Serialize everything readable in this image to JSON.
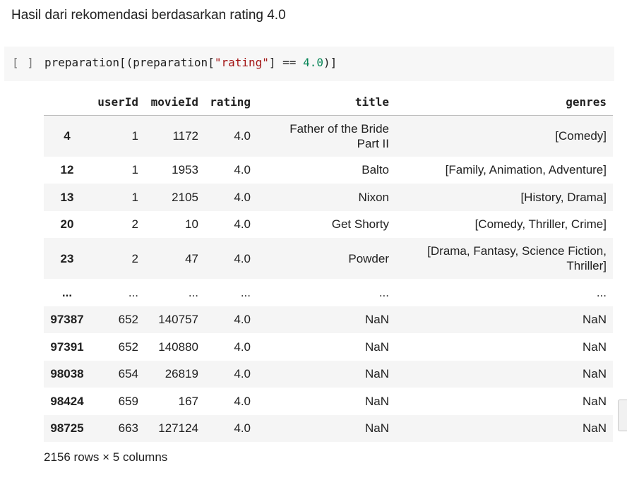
{
  "markdown": {
    "text": "Hasil dari rekomendasi berdasarkan rating 4.0"
  },
  "code_cell": {
    "run_indicator": "[ ]",
    "code_parts": [
      "preparation[(preparation[",
      "\"rating\"",
      "] == ",
      "4.0",
      ")]"
    ]
  },
  "dataframe": {
    "columns": [
      "",
      "userId",
      "movieId",
      "rating",
      "title",
      "genres"
    ],
    "rows": [
      {
        "index": "4",
        "userId": "1",
        "movieId": "1172",
        "rating": "4.0",
        "title": "Father of the Bride Part II",
        "genres": "[Comedy]"
      },
      {
        "index": "12",
        "userId": "1",
        "movieId": "1953",
        "rating": "4.0",
        "title": "Balto",
        "genres": "[Family, Animation, Adventure]"
      },
      {
        "index": "13",
        "userId": "1",
        "movieId": "2105",
        "rating": "4.0",
        "title": "Nixon",
        "genres": "[History, Drama]"
      },
      {
        "index": "20",
        "userId": "2",
        "movieId": "10",
        "rating": "4.0",
        "title": "Get Shorty",
        "genres": "[Comedy, Thriller, Crime]"
      },
      {
        "index": "23",
        "userId": "2",
        "movieId": "47",
        "rating": "4.0",
        "title": "Powder",
        "genres": "[Drama, Fantasy, Science Fiction, Thriller]"
      },
      {
        "index": "...",
        "userId": "...",
        "movieId": "...",
        "rating": "...",
        "title": "...",
        "genres": "..."
      },
      {
        "index": "97387",
        "userId": "652",
        "movieId": "140757",
        "rating": "4.0",
        "title": "NaN",
        "genres": "NaN"
      },
      {
        "index": "97391",
        "userId": "652",
        "movieId": "140880",
        "rating": "4.0",
        "title": "NaN",
        "genres": "NaN"
      },
      {
        "index": "98038",
        "userId": "654",
        "movieId": "26819",
        "rating": "4.0",
        "title": "NaN",
        "genres": "NaN"
      },
      {
        "index": "98424",
        "userId": "659",
        "movieId": "167",
        "rating": "4.0",
        "title": "NaN",
        "genres": "NaN"
      },
      {
        "index": "98725",
        "userId": "663",
        "movieId": "127124",
        "rating": "4.0",
        "title": "NaN",
        "genres": "NaN"
      }
    ],
    "summary": "2156 rows × 5 columns"
  },
  "colors": {
    "string": "#a31515",
    "number": "#098658",
    "cell_background": "#f7f7f7",
    "row_stripe": "#f5f5f5"
  }
}
